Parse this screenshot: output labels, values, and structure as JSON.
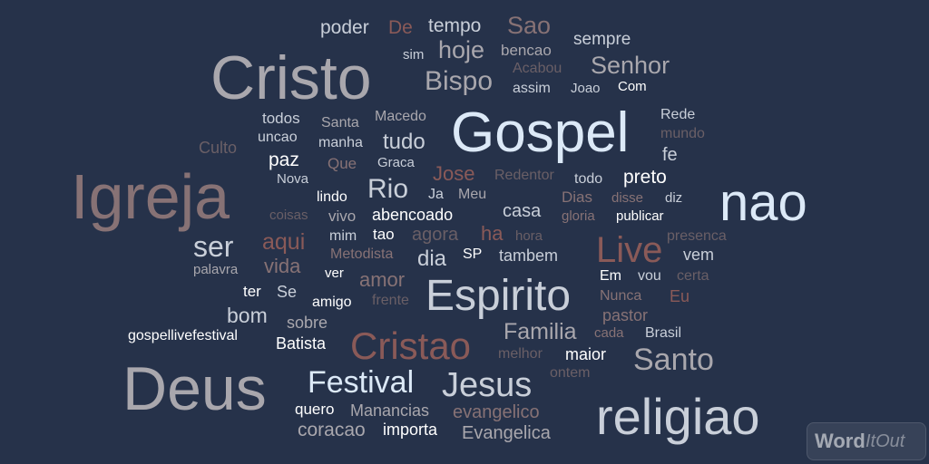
{
  "colors": {
    "background": "#26324a",
    "light": "#dce9f7",
    "white": "#ffffff",
    "silver": "#c9cfd9",
    "gray": "#a9a7ad",
    "mauve": "#877275",
    "brown": "#8a5a58",
    "dim": "#6a5f66"
  },
  "words": [
    "Gospel",
    "nao",
    "Cristo",
    "Igreja",
    "Deus",
    "religiao",
    "Espirito",
    "Cristao",
    "Live",
    "Jesus",
    "Festival",
    "Santo",
    "Senhor",
    "Bispo",
    "hoje",
    "Sao",
    "ser",
    "Rio",
    "Familia",
    "poder",
    "tempo",
    "De",
    "sempre",
    "sim",
    "bencao",
    "Acabou",
    "assim",
    "Joao",
    "Com",
    "Rede",
    "mundo",
    "todos",
    "Santa",
    "Macedo",
    "uncao",
    "manha",
    "tudo",
    "Culto",
    "fe",
    "paz",
    "Que",
    "Graca",
    "Nova",
    "Jose",
    "Redentor",
    "todo",
    "preto",
    "lindo",
    "Ja",
    "Meu",
    "Dias",
    "disse",
    "diz",
    "coisas",
    "vivo",
    "abencoado",
    "casa",
    "gloria",
    "publicar",
    "aqui",
    "tao",
    "agora",
    "ha",
    "hora",
    "mim",
    "Metodista",
    "SP",
    "tambem",
    "dia",
    "vem",
    "presenca",
    "vida",
    "palavra",
    "ver",
    "amor",
    "Em",
    "vou",
    "certa",
    "ter",
    "Se",
    "amigo",
    "frente",
    "Nunca",
    "Eu",
    "bom",
    "pastor",
    "sobre",
    "cada",
    "Brasil",
    "gospellivefestival",
    "Batista",
    "melhor",
    "maior",
    "ontem",
    "quero",
    "Manancias",
    "evangelico",
    "coracao",
    "importa",
    "Evangelica"
  ],
  "logo": {
    "word": "Word",
    "itout": "ItOut"
  }
}
